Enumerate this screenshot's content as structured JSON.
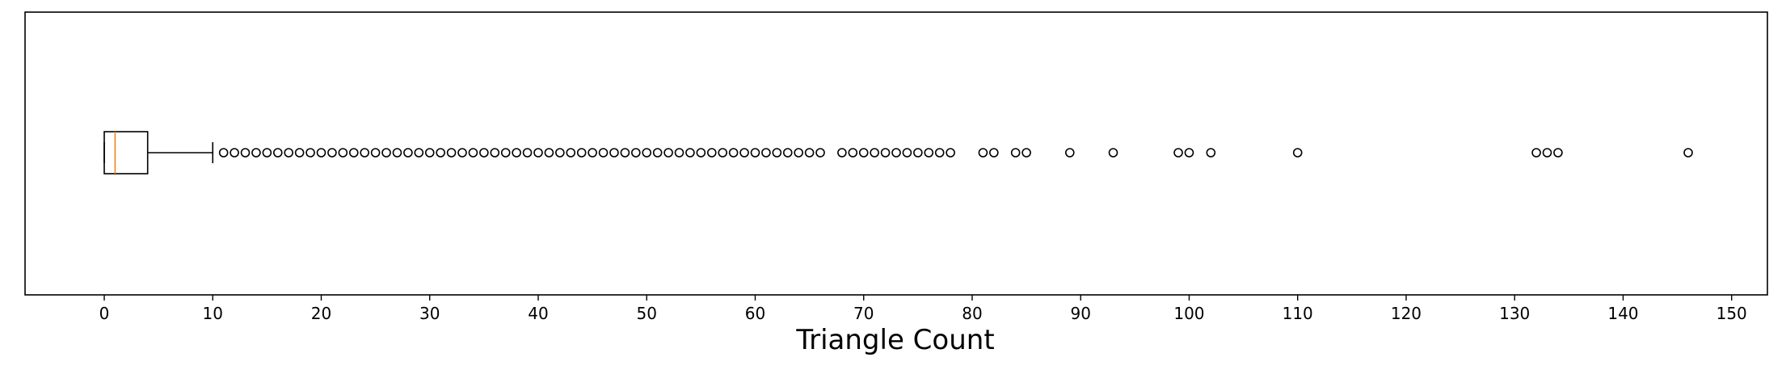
{
  "chart_data": {
    "type": "boxplot",
    "orientation": "horizontal",
    "xlabel": "Triangle Count",
    "ylabel": "",
    "title": "",
    "xlim": [
      -7.3,
      153.3
    ],
    "xticks": [
      0,
      10,
      20,
      30,
      40,
      50,
      60,
      70,
      80,
      90,
      100,
      110,
      120,
      130,
      140,
      150
    ],
    "grid": false,
    "legend": "none",
    "box": {
      "whisker_low": 0,
      "q1": 0,
      "median": 1,
      "q3": 4,
      "whisker_high": 10
    },
    "outliers": [
      11,
      12,
      13,
      14,
      15,
      16,
      17,
      18,
      19,
      20,
      21,
      22,
      23,
      24,
      25,
      26,
      27,
      28,
      29,
      30,
      31,
      32,
      33,
      34,
      35,
      36,
      37,
      38,
      39,
      40,
      41,
      42,
      43,
      44,
      45,
      46,
      47,
      48,
      49,
      50,
      51,
      52,
      53,
      54,
      55,
      56,
      57,
      58,
      59,
      60,
      61,
      62,
      63,
      64,
      65,
      66,
      68,
      69,
      70,
      71,
      72,
      73,
      74,
      75,
      76,
      77,
      78,
      81,
      82,
      84,
      85,
      89,
      93,
      99,
      100,
      102,
      110,
      132,
      133,
      134,
      146
    ],
    "colors": {
      "box": "#000000",
      "median": "#ff7f0e",
      "outlier_edge": "#000000"
    }
  }
}
